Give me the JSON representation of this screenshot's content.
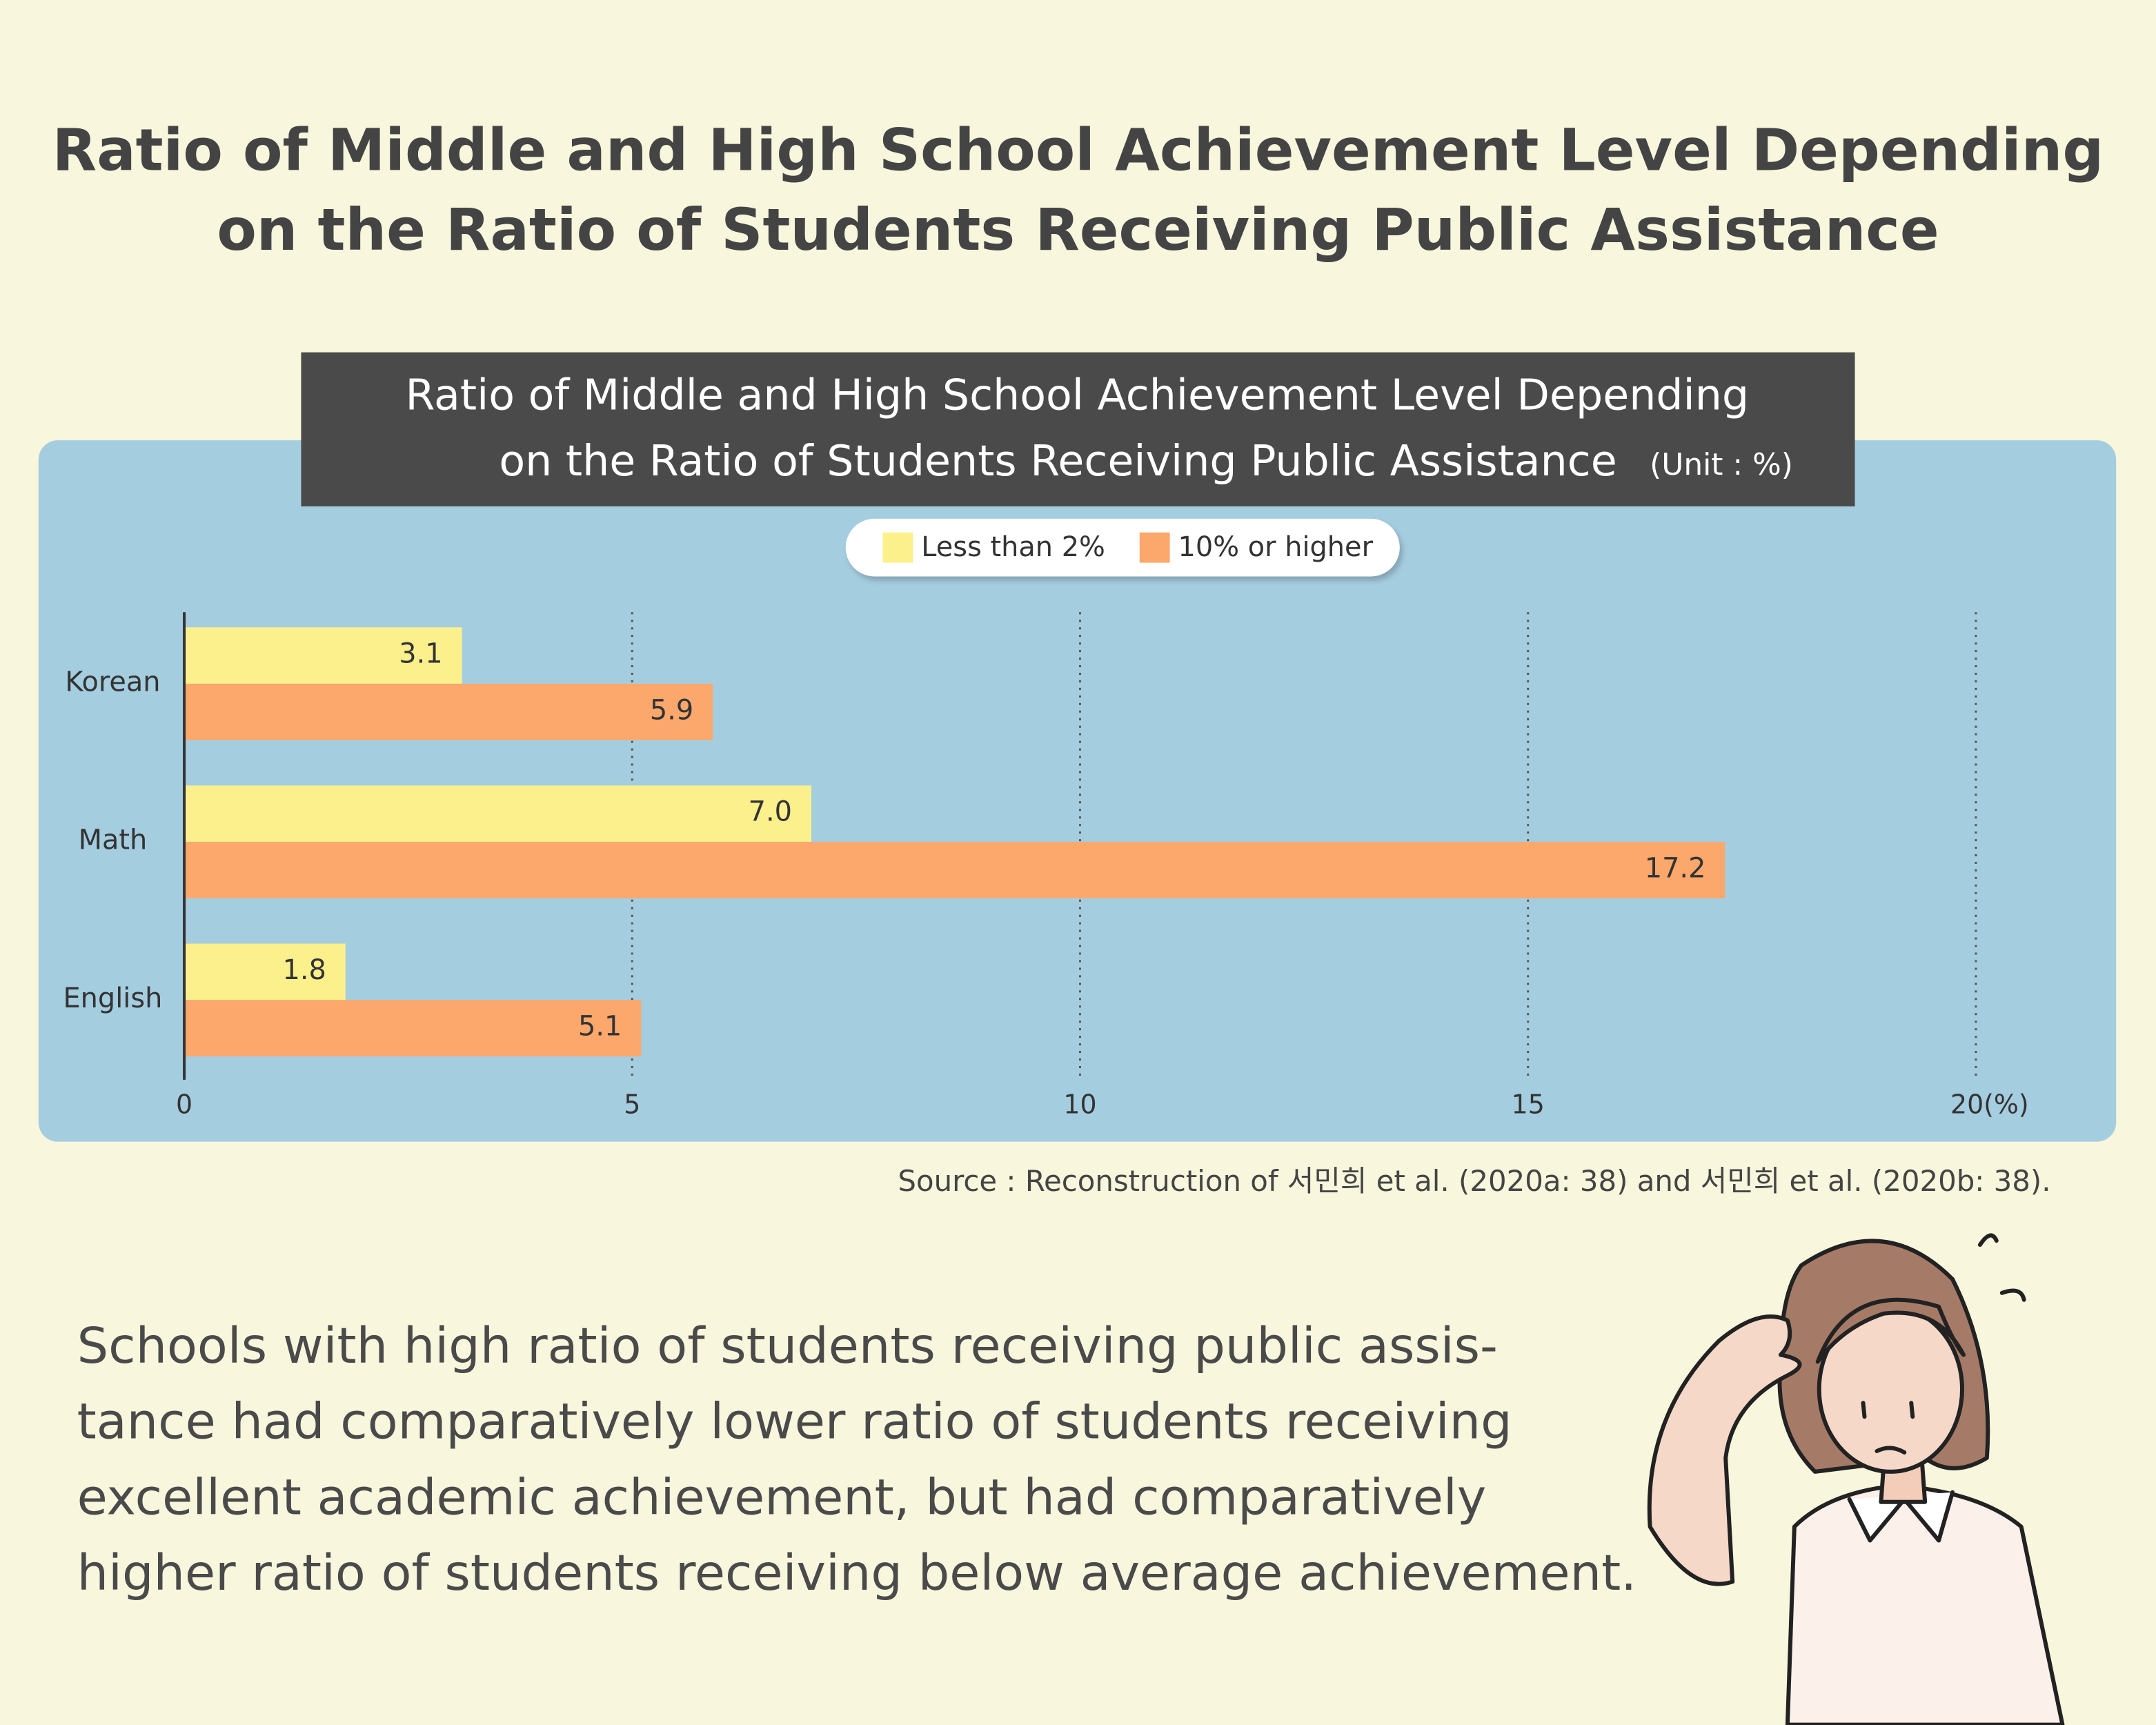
{
  "page_title": [
    "Ratio of Middle and High School Achievement Level Depending",
    "on the Ratio of Students Receiving Public Assistance"
  ],
  "chart_data": {
    "type": "bar",
    "orientation": "horizontal",
    "title": [
      "Ratio of Middle and High School Achievement Level Depending",
      "on the Ratio of Students Receiving Public Assistance"
    ],
    "unit": "(Unit : %)",
    "categories": [
      "Korean",
      "Math",
      "English"
    ],
    "series": [
      {
        "name": "Less than 2%",
        "color": "#fcf08c",
        "values": [
          3.1,
          7.0,
          1.8
        ],
        "value_labels": [
          "3.1",
          "7.0",
          "1.8"
        ]
      },
      {
        "name": "10% or higher",
        "color": "#fca76c",
        "values": [
          5.9,
          17.2,
          5.1
        ]
      }
    ],
    "xlim": [
      0,
      20
    ],
    "xticks": [
      0,
      5,
      10,
      15,
      {
        "value": 20,
        "label": "20(%)"
      }
    ],
    "grid": true,
    "legend": "top"
  },
  "source": "Source : Reconstruction of  서민희 et al. (2020a: 38) and 서민희 et al. (2020b: 38).",
  "body": [
    "Schools with high ratio of students receiving public assis-",
    "tance had comparatively lower ratio of students receiving",
    "excellent academic achievement, but had comparatively",
    "higher ratio of students receiving below average achievement."
  ]
}
